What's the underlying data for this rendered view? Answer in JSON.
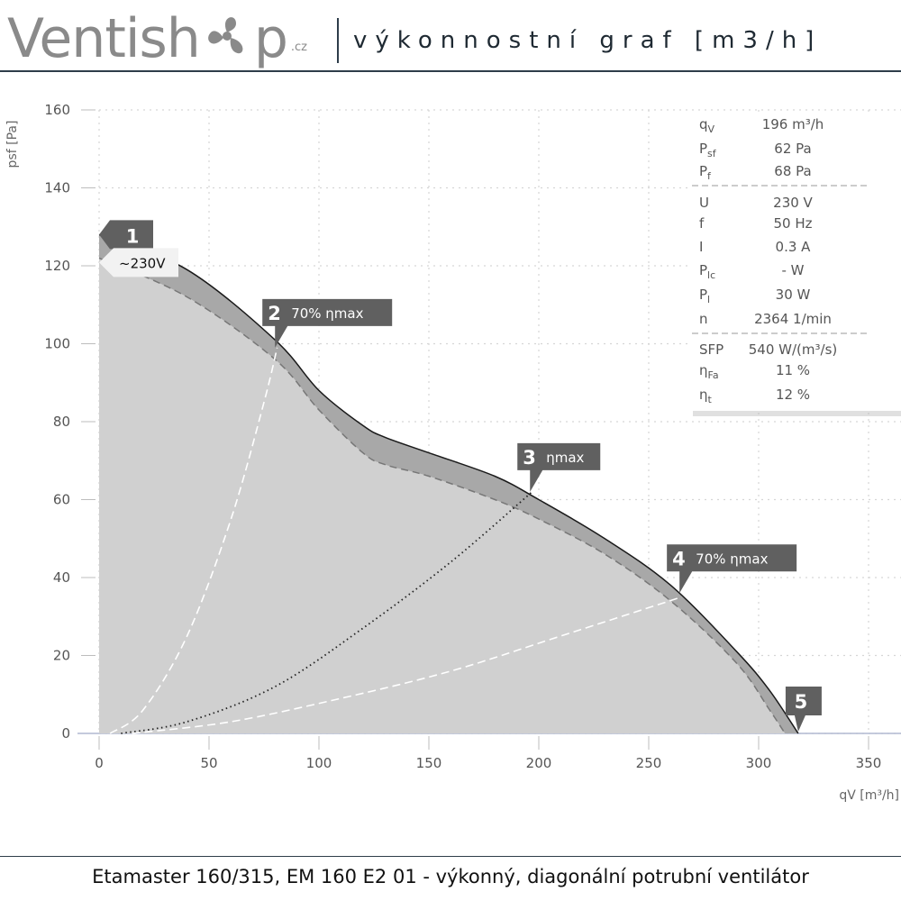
{
  "header": {
    "logo_part1": "Ventish",
    "logo_part2": "p",
    "logo_suffix": ".cz",
    "title": "výkonnostní graf [m3/h]"
  },
  "footer": {
    "text": "Etamaster 160/315, EM 160 E2 01 - výkonný, diagonální potrubní ventilátor"
  },
  "chart_data": {
    "type": "area",
    "xlabel": "qV [m³/h]",
    "ylabel": "psf [Pa]",
    "xlim": [
      0,
      350
    ],
    "ylim": [
      0,
      160
    ],
    "xticks": [
      0,
      50,
      100,
      150,
      200,
      250,
      300,
      350
    ],
    "yticks": [
      0,
      20,
      40,
      60,
      80,
      100,
      120,
      140,
      160
    ],
    "grid": true,
    "colors": {
      "fill": "#d0d0d0",
      "band": "#a8a8a8",
      "curve": "#1a1a1a",
      "marker": "#606060"
    },
    "series": [
      {
        "role": "total-pressure",
        "x": [
          0,
          40,
          80,
          100,
          120,
          130,
          150,
          180,
          200,
          230,
          260,
          290,
          305,
          318
        ],
        "y": [
          128,
          119,
          101,
          88,
          79,
          76,
          72,
          66,
          60,
          50,
          38,
          21,
          11,
          0
        ]
      },
      {
        "role": "static-pressure",
        "x": [
          0,
          40,
          80,
          100,
          120,
          130,
          150,
          180,
          200,
          230,
          260,
          290,
          305,
          312
        ],
        "y": [
          122,
          112,
          96,
          83,
          72,
          69,
          66,
          60,
          55,
          46,
          34,
          18,
          6,
          0
        ]
      },
      {
        "role": "efficiency-70-left",
        "x": [
          5,
          20,
          40,
          60,
          75,
          81
        ],
        "y": [
          0,
          6,
          25,
          55,
          85,
          99
        ]
      },
      {
        "role": "efficiency-max",
        "x": [
          10,
          40,
          80,
          120,
          160,
          197
        ],
        "y": [
          0,
          3,
          12,
          27,
          44,
          62
        ]
      },
      {
        "role": "efficiency-70-right",
        "x": [
          15,
          60,
          110,
          160,
          210,
          265
        ],
        "y": [
          0,
          3,
          9,
          16,
          25,
          35
        ]
      }
    ],
    "markers": [
      {
        "number": "1",
        "label": "~230V",
        "x": 0,
        "y": 128
      },
      {
        "number": "2",
        "label": "70% ηmax",
        "x": 80,
        "y": 99
      },
      {
        "number": "3",
        "label": "ηmax",
        "x": 196,
        "y": 62
      },
      {
        "number": "4",
        "label": "70% ηmax",
        "x": 264,
        "y": 36
      },
      {
        "number": "5",
        "label": "",
        "x": 318,
        "y": 0
      }
    ]
  },
  "info": [
    {
      "sym": "q",
      "sub": "V",
      "val": "196 m³/h"
    },
    {
      "sym": "P",
      "sub": "sf",
      "val": "62 Pa"
    },
    {
      "sym": "P",
      "sub": "f",
      "val": "68 Pa"
    },
    {
      "sym": "U",
      "sub": "",
      "val": "230 V"
    },
    {
      "sym": "f",
      "sub": "",
      "val": "50 Hz"
    },
    {
      "sym": "I",
      "sub": "",
      "val": "0.3 A"
    },
    {
      "sym": "P",
      "sub": "lc",
      "val": "- W"
    },
    {
      "sym": "P",
      "sub": "l",
      "val": "30 W"
    },
    {
      "sym": "n",
      "sub": "",
      "val": "2364 1/min"
    },
    {
      "sym": "SFP",
      "sub": "",
      "val": "540 W/(m³/s)"
    },
    {
      "sym": "η",
      "sub": "Fa",
      "val": "11 %"
    },
    {
      "sym": "η",
      "sub": "t",
      "val": "12 %"
    }
  ]
}
